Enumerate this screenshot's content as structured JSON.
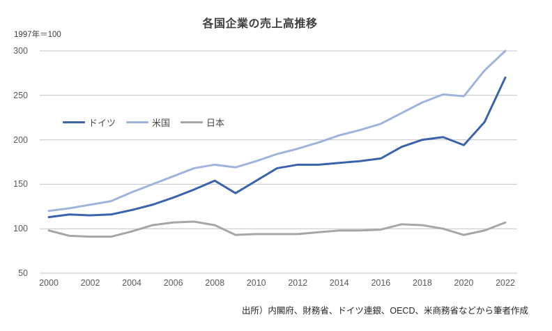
{
  "chart_data": {
    "type": "line",
    "title": "各国企業の売上高推移",
    "index_note": "1997年＝100",
    "source_note": "出所）内閣府、財務省、ドイツ連銀、OECD、米商務省などから筆者作成",
    "x": [
      2000,
      2001,
      2002,
      2003,
      2004,
      2005,
      2006,
      2007,
      2008,
      2009,
      2010,
      2011,
      2012,
      2013,
      2014,
      2015,
      2016,
      2017,
      2018,
      2019,
      2020,
      2021,
      2022
    ],
    "x_tick_labels": [
      "2000",
      "2002",
      "2004",
      "2006",
      "2008",
      "2010",
      "2012",
      "2014",
      "2016",
      "2018",
      "2020",
      "2022"
    ],
    "y_ticks": [
      50,
      100,
      150,
      200,
      250,
      300
    ],
    "y_tick_labels": [
      "50",
      "100",
      "150",
      "200",
      "250",
      "300"
    ],
    "ylim": [
      50,
      300
    ],
    "grid": "horizontal",
    "gridline_color": "#c4c4c4",
    "legend_position": "inside-top-left",
    "series": [
      {
        "name": "ドイツ",
        "color": "#3b63ac",
        "values": [
          113,
          116,
          115,
          116,
          121,
          127,
          135,
          144,
          154,
          140,
          154,
          168,
          172,
          172,
          174,
          176,
          179,
          192,
          200,
          203,
          194,
          220,
          270
        ]
      },
      {
        "name": "米国",
        "color": "#9fb4dc",
        "values": [
          120,
          123,
          127,
          131,
          141,
          150,
          159,
          168,
          172,
          169,
          176,
          184,
          190,
          197,
          205,
          211,
          218,
          230,
          242,
          251,
          249,
          278,
          300
        ]
      },
      {
        "name": "日本",
        "color": "#a6a6a6",
        "values": [
          98,
          92,
          91,
          91,
          97,
          104,
          107,
          108,
          104,
          93,
          94,
          94,
          94,
          96,
          98,
          98,
          99,
          105,
          104,
          100,
          93,
          98,
          107
        ]
      }
    ]
  }
}
